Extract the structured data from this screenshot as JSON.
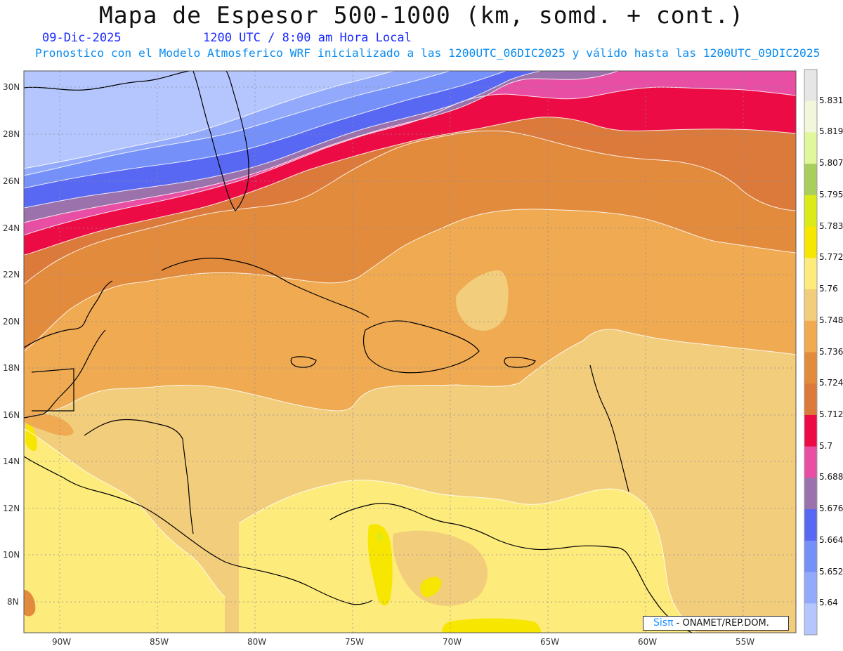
{
  "header": {
    "title": "Mapa de Espesor 500-1000 (km, somd. + cont.)",
    "date": "09-Dic-2025",
    "time": "1200 UTC / 8:00 am Hora Local",
    "description": "Pronostico con el Modelo Atmosferico WRF inicializado a las 1200UTC_06DIC2025 y válido hasta las  1200UTC_09DIC2025"
  },
  "map": {
    "lat_labels": [
      "30N",
      "28N",
      "26N",
      "24N",
      "22N",
      "20N",
      "18N",
      "16N",
      "14N",
      "12N",
      "10N",
      "8N"
    ],
    "lon_labels": [
      "90W",
      "85W",
      "80W",
      "75W",
      "70W",
      "65W",
      "60W",
      "55W"
    ]
  },
  "colorbar": {
    "labels": [
      "5.831",
      "5.819",
      "5.807",
      "5.795",
      "5.783",
      "5.772",
      "5.76",
      "5.748",
      "5.736",
      "5.724",
      "5.712",
      "5.7",
      "5.688",
      "5.676",
      "5.664",
      "5.652",
      "5.64"
    ],
    "colors": [
      "#e6e6e6",
      "#f2f7dc",
      "#e1f79c",
      "#a8cf5d",
      "#dcea18",
      "#f7e600",
      "#fdeb7c",
      "#f2cd7b",
      "#efaa52",
      "#e38b3c",
      "#dc7a3b",
      "#ec0b45",
      "#e84ea4",
      "#9b72ab",
      "#5968f2",
      "#7591f9",
      "#93aafc",
      "#b4c6fd"
    ]
  },
  "credit": {
    "brand": "Sisπ",
    "org": "- ONAMET/REP.DOM."
  }
}
